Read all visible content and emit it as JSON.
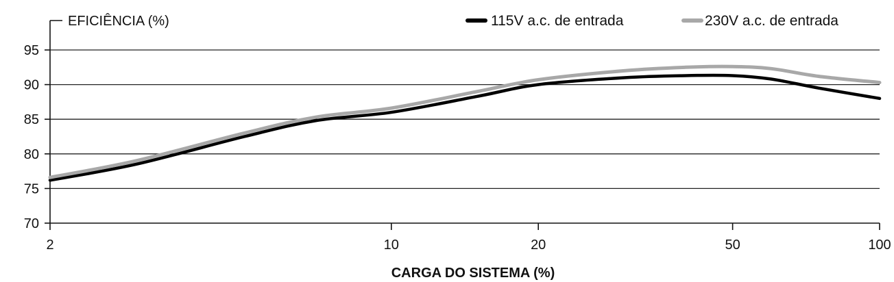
{
  "chart_data": {
    "type": "line",
    "title": "",
    "ylabel": "EFICIÊNCIA (%)",
    "xlabel": "CARGA DO SISTEMA (%)",
    "x_ticks": [
      2,
      10,
      20,
      50,
      100
    ],
    "x_tick_labels": [
      "2",
      "10",
      "20",
      "50",
      "100"
    ],
    "y_ticks": [
      70,
      75,
      80,
      85,
      90,
      95
    ],
    "y_tick_labels": [
      "70",
      "75",
      "80",
      "85",
      "90",
      "95"
    ],
    "ylim": [
      70,
      95
    ],
    "xlim": [
      2,
      100
    ],
    "grid": true,
    "legend_position": "top-right",
    "series": [
      {
        "name": "115V a.c. de entrada",
        "color": "#000000",
        "points": [
          [
            2,
            76.2
          ],
          [
            3,
            78.5
          ],
          [
            5,
            82.5
          ],
          [
            7,
            84.8
          ],
          [
            10,
            86.0
          ],
          [
            15,
            88.3
          ],
          [
            20,
            90.0
          ],
          [
            30,
            91.0
          ],
          [
            40,
            91.3
          ],
          [
            50,
            91.3
          ],
          [
            60,
            90.8
          ],
          [
            75,
            89.5
          ],
          [
            100,
            88.0
          ]
        ]
      },
      {
        "name": "230V a.c. de entrada",
        "color": "#a8a8a8",
        "points": [
          [
            2,
            76.6
          ],
          [
            3,
            79.0
          ],
          [
            5,
            83.0
          ],
          [
            7,
            85.3
          ],
          [
            10,
            86.6
          ],
          [
            15,
            89.0
          ],
          [
            20,
            90.7
          ],
          [
            30,
            92.0
          ],
          [
            40,
            92.5
          ],
          [
            50,
            92.6
          ],
          [
            60,
            92.3
          ],
          [
            75,
            91.2
          ],
          [
            100,
            90.3
          ]
        ]
      }
    ]
  }
}
